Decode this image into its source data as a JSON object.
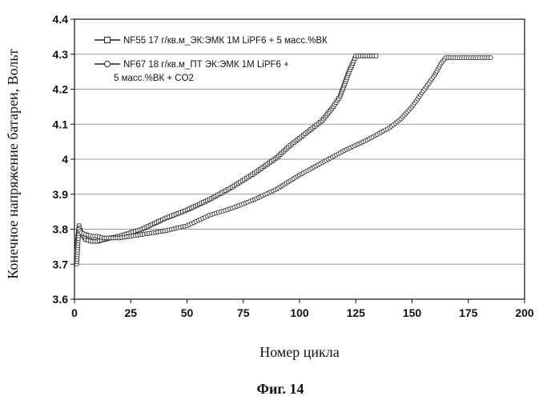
{
  "chart_data": {
    "type": "line",
    "title": "",
    "caption": "Фиг. 14",
    "xlabel": "Номер цикла",
    "ylabel": "Конечное напряжение батареи, Вольт",
    "xlim": [
      0,
      200
    ],
    "ylim": [
      3.6,
      4.4
    ],
    "xticks": [
      0,
      25,
      50,
      75,
      100,
      125,
      150,
      175,
      200
    ],
    "yticks": [
      3.6,
      3.7,
      3.8,
      3.9,
      4.0,
      4.1,
      4.2,
      4.3,
      4.4
    ],
    "xtick_labels": [
      "0",
      "25",
      "50",
      "75",
      "100",
      "125",
      "150",
      "175",
      "200"
    ],
    "ytick_labels": [
      "3.6",
      "3.7",
      "3.8",
      "3.9",
      "4",
      "4.1",
      "4.2",
      "4.3",
      "4.4"
    ],
    "grid": "horizontal",
    "legend_position": "top-left",
    "series": [
      {
        "name": "NF55 17 г/кв.м_ЭК:ЭМК 1М LiPF6 + 5 масс.%ВК",
        "legend_lines": [
          "NF55 17 г/кв.м_ЭК:ЭМК 1М LiPF6 + 5 масс.%ВК"
        ],
        "marker": "square",
        "color": "#222222",
        "x": [
          1,
          2,
          3,
          5,
          8,
          10,
          13,
          16,
          20,
          25,
          30,
          40,
          50,
          60,
          70,
          80,
          90,
          95,
          100,
          105,
          110,
          115,
          118,
          120,
          122,
          124,
          125,
          127,
          130,
          134
        ],
        "y": [
          3.75,
          3.81,
          3.79,
          3.77,
          3.765,
          3.765,
          3.77,
          3.775,
          3.78,
          3.79,
          3.8,
          3.83,
          3.855,
          3.885,
          3.92,
          3.96,
          4.005,
          4.035,
          4.06,
          4.085,
          4.11,
          4.15,
          4.18,
          4.215,
          4.25,
          4.28,
          4.295,
          4.295,
          4.295,
          4.295
        ]
      },
      {
        "name": "NF67 18 г/кв.м_ПТ ЭК:ЭМК 1М LiPF6 + 5 масс.%ВК + CO2",
        "legend_lines": [
          "NF67 18 г/кв.м_ПТ ЭК:ЭМК 1М LiPF6 +",
          "5 масс.%ВК + CO2"
        ],
        "marker": "circle",
        "color": "#222222",
        "x": [
          1,
          2,
          3,
          5,
          8,
          10,
          13,
          16,
          20,
          25,
          30,
          40,
          50,
          55,
          60,
          70,
          80,
          90,
          95,
          100,
          110,
          120,
          130,
          140,
          145,
          150,
          155,
          160,
          163,
          165,
          170,
          175,
          180,
          185
        ],
        "y": [
          3.7,
          3.8,
          3.79,
          3.785,
          3.78,
          3.78,
          3.775,
          3.775,
          3.775,
          3.78,
          3.785,
          3.795,
          3.81,
          3.825,
          3.84,
          3.86,
          3.885,
          3.915,
          3.935,
          3.955,
          3.99,
          4.025,
          4.055,
          4.09,
          4.115,
          4.15,
          4.195,
          4.24,
          4.275,
          4.29,
          4.29,
          4.29,
          4.29,
          4.29
        ]
      }
    ]
  }
}
